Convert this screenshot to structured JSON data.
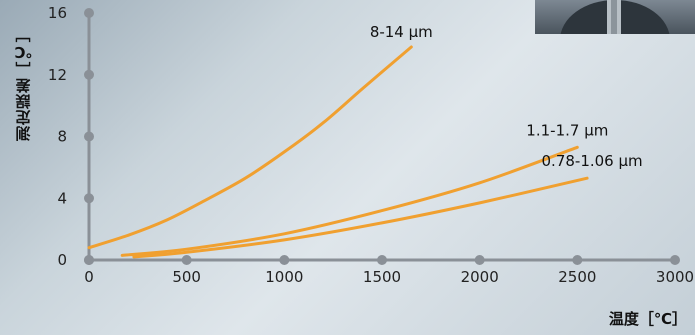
{
  "chart_data": {
    "type": "line",
    "title": "",
    "xlabel": "温度［℃］",
    "ylabel": "測定誤差［℃］",
    "xlim": [
      0,
      3000
    ],
    "ylim": [
      0,
      16
    ],
    "x_ticks": [
      "0",
      "500",
      "1000",
      "1500",
      "2000",
      "2500",
      "3000"
    ],
    "y_ticks": [
      "0",
      "4",
      "8",
      "12",
      "16"
    ],
    "grid": false,
    "series": [
      {
        "name": "8-14 μm",
        "color": "#f0a030",
        "x": [
          0,
          200,
          400,
          600,
          800,
          1000,
          1200,
          1400,
          1650
        ],
        "y": [
          0.8,
          1.6,
          2.6,
          3.9,
          5.3,
          7.0,
          8.9,
          11.1,
          13.8
        ]
      },
      {
        "name": "1.1-1.7 μm",
        "color": "#f0a030",
        "x": [
          170,
          500,
          1000,
          1500,
          2000,
          2500
        ],
        "y": [
          0.3,
          0.7,
          1.7,
          3.2,
          5.0,
          7.3
        ]
      },
      {
        "name": "0.78-1.06 μm",
        "color": "#f0a030",
        "x": [
          230,
          500,
          1000,
          1500,
          2000,
          2550
        ],
        "y": [
          0.2,
          0.5,
          1.3,
          2.4,
          3.7,
          5.3
        ]
      }
    ]
  }
}
